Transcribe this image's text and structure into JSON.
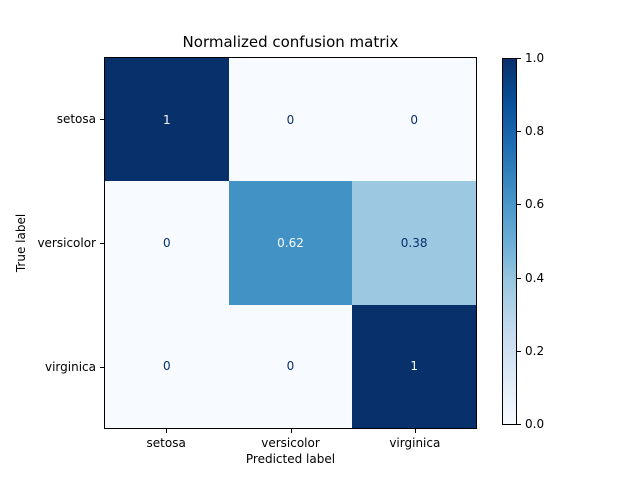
{
  "chart_data": {
    "type": "heatmap",
    "title": "Normalized confusion matrix",
    "xlabel": "Predicted label",
    "ylabel": "True label",
    "x_tick_labels": [
      "setosa",
      "versicolor",
      "virginica"
    ],
    "y_tick_labels": [
      "setosa",
      "versicolor",
      "virginica"
    ],
    "matrix": [
      [
        1.0,
        0.0,
        0.0
      ],
      [
        0.0,
        0.62,
        0.38
      ],
      [
        0.0,
        0.0,
        1.0
      ]
    ],
    "cell_labels": [
      [
        "1",
        "0",
        "0"
      ],
      [
        "0",
        "0.62",
        "0.38"
      ],
      [
        "0",
        "0",
        "1"
      ]
    ],
    "vmin": 0.0,
    "vmax": 1.0,
    "colormap": "Blues",
    "colormap_stops": [
      "#f7fbff",
      "#deebf7",
      "#c6dbef",
      "#9ecae1",
      "#6baed6",
      "#4292c6",
      "#2171b5",
      "#08519c",
      "#08306b"
    ],
    "cell_colors": [
      [
        "#08306b",
        "#f7fbff",
        "#f7fbff"
      ],
      [
        "#f7fbff",
        "#4392c6",
        "#9cc9e1"
      ],
      [
        "#f7fbff",
        "#f7fbff",
        "#08306b"
      ]
    ],
    "cell_text_colors": [
      [
        "#f7fbff",
        "#08306b",
        "#08306b"
      ],
      [
        "#08306b",
        "#f7fbff",
        "#08306b"
      ],
      [
        "#08306b",
        "#08306b",
        "#f7fbff"
      ]
    ],
    "colorbar": {
      "position": "right",
      "ticks": [
        {
          "label": "1.0",
          "value": 1.0
        },
        {
          "label": "0.8",
          "value": 0.8
        },
        {
          "label": "0.6",
          "value": 0.6
        },
        {
          "label": "0.4",
          "value": 0.4
        },
        {
          "label": "0.2",
          "value": 0.2
        },
        {
          "label": "0.0",
          "value": 0.0
        }
      ]
    },
    "grid": false,
    "legend": "none",
    "background_color": "#ffffff",
    "spine_color": "#000000",
    "text_color": "#000000"
  }
}
